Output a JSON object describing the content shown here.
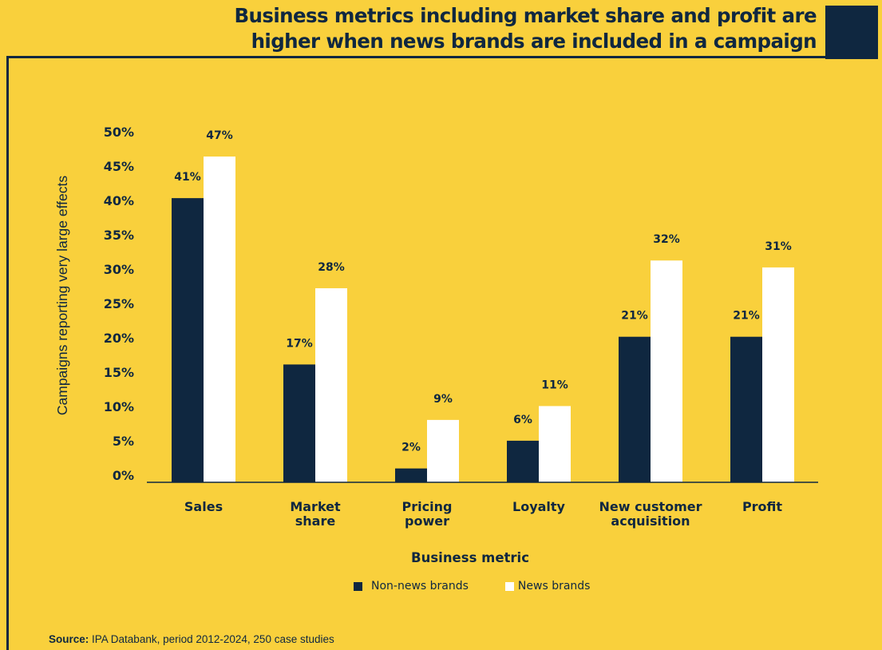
{
  "title_lines": [
    "Business metrics including market share and profit are",
    "higher when news brands are included in a campaign"
  ],
  "source": {
    "label": "Source:",
    "text": "IPA Databank, period 2012-2024, 250 case studies"
  },
  "colors": {
    "background": "#f9d03c",
    "non_news": "#0f2740",
    "news": "#ffffff",
    "text": "#0f2740"
  },
  "chart_data": {
    "type": "bar",
    "title": "Business metrics including market share and profit are higher when news brands are included in a campaign",
    "xlabel": "Business metric",
    "ylabel": "Campaigns reporting very large effects",
    "ylim": [
      0,
      50
    ],
    "yticks": [
      0,
      5,
      10,
      15,
      20,
      25,
      30,
      35,
      40,
      45,
      50
    ],
    "ytick_labels": [
      "0%",
      "5%",
      "10%",
      "15%",
      "20%",
      "25%",
      "30%",
      "35%",
      "40%",
      "45%",
      "50%"
    ],
    "grid": false,
    "legend_position": "bottom",
    "categories": [
      [
        "Sales"
      ],
      [
        "Market",
        "share"
      ],
      [
        "Pricing",
        "power"
      ],
      [
        "Loyalty"
      ],
      [
        "New customer",
        "acquisition"
      ],
      [
        "Profit"
      ]
    ],
    "series": [
      {
        "name": "Non-news brands",
        "color": "#0f2740",
        "values": [
          41,
          17,
          2,
          6,
          21,
          21
        ],
        "labels": [
          "41%",
          "17%",
          "2%",
          "6%",
          "21%",
          "21%"
        ]
      },
      {
        "name": "News brands",
        "color": "#ffffff",
        "values": [
          47,
          28,
          9,
          11,
          32,
          31
        ],
        "labels": [
          "47%",
          "28%",
          "9%",
          "11%",
          "32%",
          "31%"
        ]
      }
    ]
  }
}
